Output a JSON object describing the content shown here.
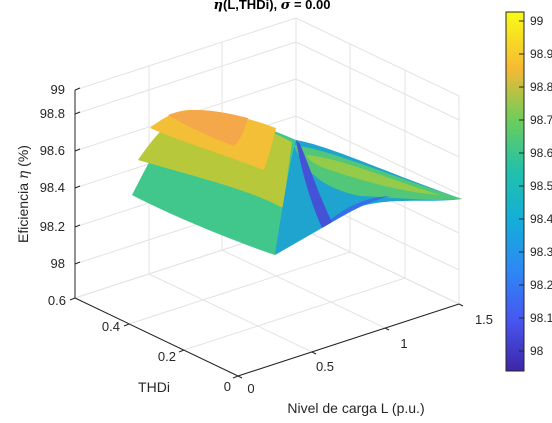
{
  "chart_data": {
    "type": "surface",
    "title_parts": [
      "η",
      "(L,THDi), ",
      "σ",
      " = 0.00"
    ],
    "xlabel": "Nivel de carga L (p.u.)",
    "ylabel": "THDi",
    "zlabel_parts": [
      "Eficiencia ",
      "η",
      " (%)"
    ],
    "xlim": [
      0,
      1.5
    ],
    "ylim": [
      0,
      0.6
    ],
    "zlim": [
      97.9,
      99.05
    ],
    "x_ticks": [
      "0",
      "0.5",
      "1",
      "1.5"
    ],
    "y_ticks": [
      "0",
      "0.2",
      "0.4",
      "0.6"
    ],
    "z_ticks": [
      "98",
      "98.2",
      "98.4",
      "98.6",
      "98.8",
      "99"
    ],
    "grid": true,
    "colormap": "parula",
    "colorbar": {
      "location": "right",
      "range": [
        97.93,
        99.02
      ],
      "ticks": [
        "98",
        "98.1",
        "98.2",
        "98.3",
        "98.4",
        "98.5",
        "98.6",
        "98.7",
        "98.8",
        "98.9",
        "99"
      ]
    },
    "surface": {
      "x_range": [
        0.05,
        1.5
      ],
      "y_range": [
        0,
        0.5
      ],
      "corner_values": [
        {
          "x": 0.05,
          "y": 0.5,
          "z": 98.4
        },
        {
          "x": 0.05,
          "y": 0,
          "z": 97.97
        },
        {
          "x": 1.5,
          "y": 0,
          "z": 98.4
        },
        {
          "x": 1.5,
          "y": 0.5,
          "z": 98.51
        }
      ],
      "peak": {
        "x": 0.45,
        "y": 0.5,
        "z": 98.86
      }
    }
  }
}
